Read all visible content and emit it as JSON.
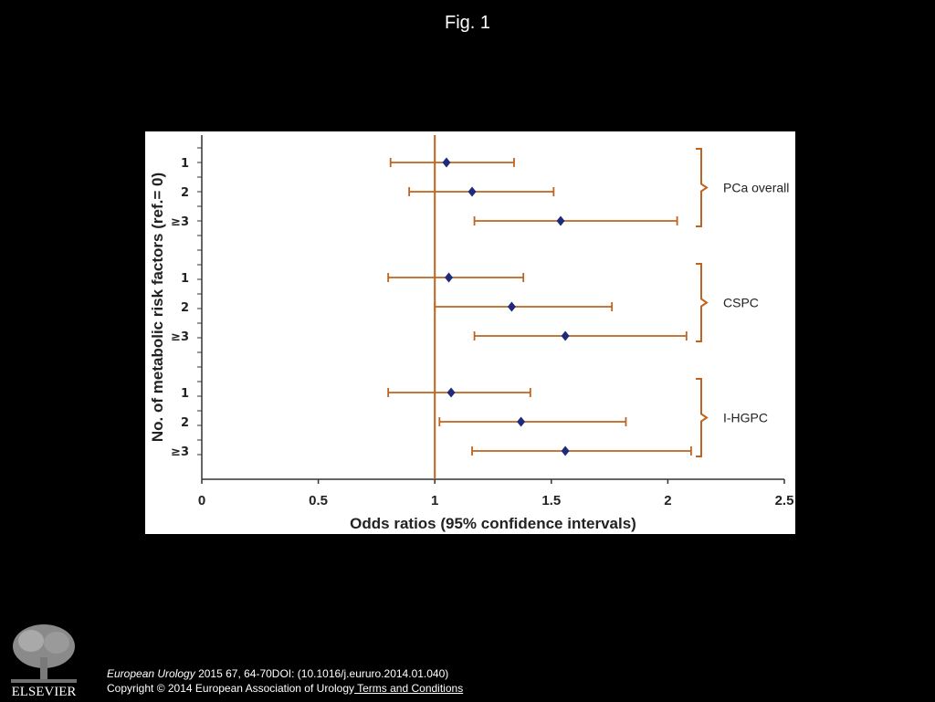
{
  "slide": {
    "title": "Fig. 1"
  },
  "citation": {
    "journal": "European Urology",
    "details": " 2015 67, 64-70DOI: (10.1016/j.eururo.2014.01.040)",
    "copyright": "Copyright © 2014 European Association of Urology",
    "terms_link": " Terms and Conditions"
  },
  "publisher": {
    "logo_text": "ELSEVIER",
    "logo_icon": "elsevier-tree-icon"
  },
  "colors": {
    "background": "#000000",
    "interval": "#c0631e",
    "point": "#1f2a7a",
    "reference_line": "#c0631e",
    "bracket": "#c0631e"
  },
  "chart_data": {
    "type": "forest",
    "title": "",
    "xlabel": "Odds ratios (95% confidence intervals)",
    "ylabel": "No. of metabolic risk factors (ref.= 0)",
    "xlim": [
      0,
      2.5
    ],
    "xticks": [
      "0",
      "0.5",
      "1",
      "1.5",
      "2",
      "2.5"
    ],
    "reference_line": 1,
    "groups": [
      {
        "name": "PCa overall",
        "rows": [
          {
            "label": "1",
            "or": 1.05,
            "lo": 0.81,
            "hi": 1.34
          },
          {
            "label": "2",
            "or": 1.16,
            "lo": 0.89,
            "hi": 1.51
          },
          {
            "label": "≥3",
            "or": 1.54,
            "lo": 1.17,
            "hi": 2.04
          }
        ]
      },
      {
        "name": "CSPC",
        "rows": [
          {
            "label": "1",
            "or": 1.06,
            "lo": 0.8,
            "hi": 1.38
          },
          {
            "label": "2",
            "or": 1.33,
            "lo": 1.0,
            "hi": 1.76
          },
          {
            "label": "≥3",
            "or": 1.56,
            "lo": 1.17,
            "hi": 2.08
          }
        ]
      },
      {
        "name": "I-HGPC",
        "rows": [
          {
            "label": "1",
            "or": 1.07,
            "lo": 0.8,
            "hi": 1.41
          },
          {
            "label": "2",
            "or": 1.37,
            "lo": 1.02,
            "hi": 1.82
          },
          {
            "label": "≥3",
            "or": 1.56,
            "lo": 1.16,
            "hi": 2.1
          }
        ]
      }
    ]
  }
}
